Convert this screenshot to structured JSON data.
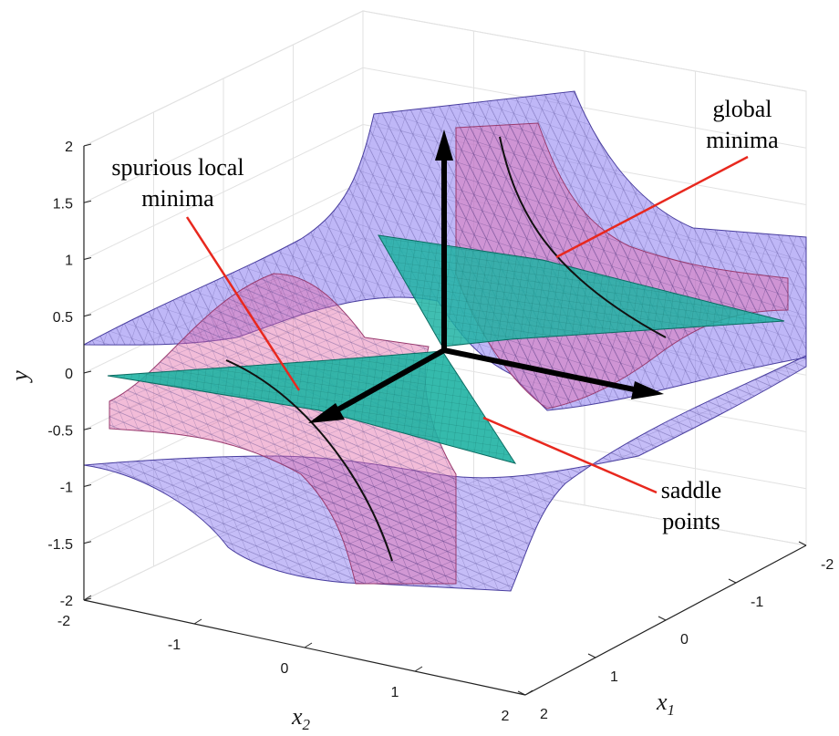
{
  "chart_data": {
    "type": "surface3d",
    "axes": {
      "x1": {
        "label_base": "x",
        "label_sub": "1",
        "range": [
          -2,
          2
        ],
        "ticks": [
          "-2",
          "-1",
          "0",
          "1",
          "2"
        ]
      },
      "x2": {
        "label_base": "x",
        "label_sub": "2",
        "range": [
          -2,
          2
        ],
        "ticks": [
          "-2",
          "-1",
          "0",
          "1",
          "2"
        ]
      },
      "y": {
        "label": "y",
        "range": [
          -2,
          2
        ],
        "ticks": [
          "2",
          "1.5",
          "1",
          "0.5",
          "0",
          "-0.5",
          "-1",
          "-1.5",
          "-2"
        ]
      }
    },
    "grid": true,
    "surfaces": [
      {
        "role": "outer",
        "color": "#8b7cf0"
      },
      {
        "role": "inner",
        "color": "#e36aa8"
      },
      {
        "role": "plane",
        "color": "#1fb3a3"
      }
    ],
    "coordinate_arrows": {
      "color": "#000000"
    },
    "annotations": [
      {
        "text_lines": [
          "global",
          "minima"
        ],
        "color": "#e8281e"
      },
      {
        "text_lines": [
          "spurious local",
          "minima"
        ],
        "color": "#e8281e"
      },
      {
        "text_lines": [
          "saddle",
          "points"
        ],
        "color": "#e8281e"
      }
    ]
  }
}
